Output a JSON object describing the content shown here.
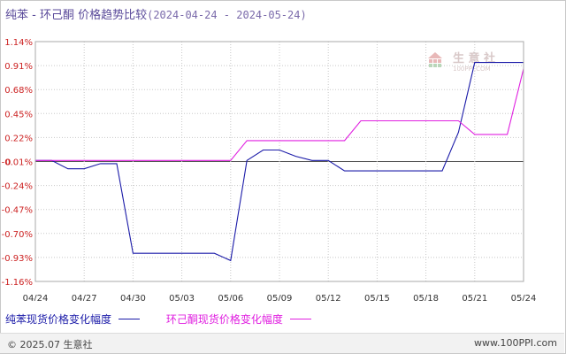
{
  "title": {
    "main": "纯苯 - 环己酮 价格趋势比较",
    "period": "(2024-04-24 - 2024-05-24)"
  },
  "watermark": {
    "text": "生 意 社",
    "url": "100PPI.COM"
  },
  "footer": {
    "copyright": "© 2025.07 生意社",
    "website": "www.100PPI.com"
  },
  "colors": {
    "series1": "#1a1aa8",
    "series2": "#e020e0",
    "ytick": "#cc2222",
    "grid": "#c8c8c8"
  },
  "chart_data": {
    "type": "line",
    "yticks": [
      "1.14%",
      "0.91%",
      "0.68%",
      "0.45%",
      "0.22%",
      "-0.01%",
      "-0.24%",
      "-0.47%",
      "-0.70%",
      "-0.93%",
      "-1.16%"
    ],
    "ytick_values": [
      1.14,
      0.91,
      0.68,
      0.45,
      0.22,
      -0.01,
      -0.24,
      -0.47,
      -0.7,
      -0.93,
      -1.16
    ],
    "y_zero_label": "0",
    "ylim": [
      -1.16,
      1.14
    ],
    "xticks": [
      "04/24",
      "04/27",
      "04/30",
      "05/03",
      "05/06",
      "05/09",
      "05/12",
      "05/15",
      "05/18",
      "05/21",
      "05/24"
    ],
    "xlim": [
      0,
      30
    ],
    "grid": true,
    "series": [
      {
        "name": "纯苯现货价格变化幅度",
        "points": [
          [
            0,
            0
          ],
          [
            1,
            0
          ],
          [
            2,
            -0.08
          ],
          [
            3,
            -0.08
          ],
          [
            4,
            -0.03
          ],
          [
            5,
            -0.03
          ],
          [
            6,
            -0.89
          ],
          [
            7,
            -0.89
          ],
          [
            8,
            -0.89
          ],
          [
            9,
            -0.89
          ],
          [
            10,
            -0.89
          ],
          [
            11,
            -0.89
          ],
          [
            12,
            -0.96
          ],
          [
            13,
            0
          ],
          [
            14,
            0.1
          ],
          [
            15,
            0.1
          ],
          [
            16,
            0.04
          ],
          [
            17,
            0
          ],
          [
            18,
            0
          ],
          [
            19,
            -0.1
          ],
          [
            20,
            -0.1
          ],
          [
            21,
            -0.1
          ],
          [
            22,
            -0.1
          ],
          [
            23,
            -0.1
          ],
          [
            24,
            -0.1
          ],
          [
            25,
            -0.1
          ],
          [
            26,
            0.27
          ],
          [
            27,
            0.94
          ],
          [
            28,
            0.94
          ],
          [
            29,
            0.94
          ],
          [
            30,
            0.94
          ]
        ]
      },
      {
        "name": "环己酮现货价格变化幅度",
        "points": [
          [
            0,
            0
          ],
          [
            1,
            0
          ],
          [
            2,
            0
          ],
          [
            3,
            0
          ],
          [
            4,
            0
          ],
          [
            5,
            0
          ],
          [
            6,
            0
          ],
          [
            7,
            0
          ],
          [
            8,
            0
          ],
          [
            9,
            0
          ],
          [
            10,
            0
          ],
          [
            11,
            0
          ],
          [
            12,
            0
          ],
          [
            13,
            0.19
          ],
          [
            14,
            0.19
          ],
          [
            15,
            0.19
          ],
          [
            16,
            0.19
          ],
          [
            17,
            0.19
          ],
          [
            18,
            0.19
          ],
          [
            19,
            0.19
          ],
          [
            20,
            0.38
          ],
          [
            21,
            0.38
          ],
          [
            22,
            0.38
          ],
          [
            23,
            0.38
          ],
          [
            24,
            0.38
          ],
          [
            25,
            0.38
          ],
          [
            26,
            0.38
          ],
          [
            27,
            0.25
          ],
          [
            28,
            0.25
          ],
          [
            29,
            0.25
          ],
          [
            30,
            0.88
          ]
        ]
      }
    ]
  }
}
